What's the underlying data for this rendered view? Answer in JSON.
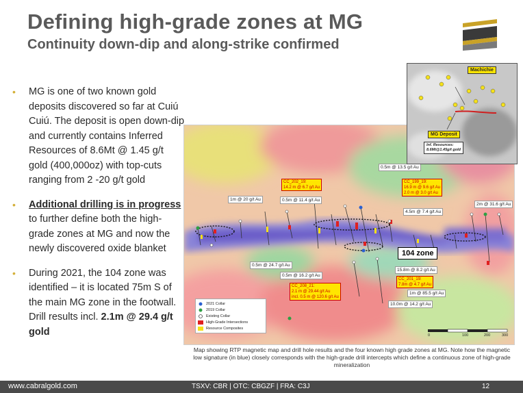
{
  "header": {
    "title": "Defining high-grade zones at MG",
    "subtitle": "Continuity down-dip and along-strike confirmed"
  },
  "bullets": {
    "b1": "MG is one of two known gold deposits discovered so far at Cuiú Cuiú. The deposit is open down-dip and currently contains Inferred Resources of 8.6Mt @ 1.45 g/t gold (400,000oz) with top-cuts ranging from 2 -20 g/t gold",
    "b2_bold": "Additional drilling is in progress",
    "b2_rest": " to further define both the high-grade zones at MG and now the newly discovered oxide blanket",
    "b3_pre": "During 2021, the 104 zone was identified – it is located 75m S of the main MG zone in the footwall. Drill results incl. ",
    "b3_bold": "2.1m @ 29.4 g/t gold"
  },
  "map": {
    "labels": {
      "l1": "0.5m @ 13.5 g/t Au",
      "l2": "1m @ 20 g/t Au",
      "l3": "0.5m @ 11.4 g/t Au",
      "l4": "4.5m @ 7.4 g/t Au",
      "l5": "2m @ 31.6 g/t Au",
      "l6": "0.5m @ 24.7 g/t Au",
      "l7": "0.5m @ 16.2 g/t Au",
      "l8": "15.8m @ 8.2 g/t Au",
      "l9": "1m @ 85.5 g/t Au",
      "l10": "10.0m @ 14.2 g/t Au"
    },
    "highlights": {
      "h1_t": "CC_202_19:",
      "h1_v": "14.2 m @ 6.7 g/t Au",
      "h2_t": "CC_199_19:",
      "h2_v1": "16.9 m @ 9.6 g/t Au",
      "h2_v2": "2.0 m @ 3.0 g/t Au",
      "h3_t": "CC_208_21:",
      "h3_v1": "2.1 m @ 29.44 g/t Au",
      "h3_v2": "incl. 0.5 m @ 120.6 g/t Au",
      "h4_t": "CC_201_19:",
      "h4_v": "7.8m @ 4.7 g/t Au"
    },
    "zone_label": "104 zone",
    "legend": {
      "c2021": "2021 Collar",
      "c2019": "2019 Collar",
      "existing": "Existing Collar",
      "hg": "High-Grade Intersections",
      "rc": "Resource Composites"
    },
    "scale": [
      "0",
      "100",
      "200",
      "300"
    ],
    "scale_unit": "m"
  },
  "inset": {
    "machichie": "Machichie",
    "mg": "MG Deposit",
    "res1": "Inf. Resources:",
    "res2": "8.6Mt@1.45g/t gold"
  },
  "caption": "Map showing RTP magnetic map and drill hole results and the four known high grade zones at MG. Note how the magnetic low signature (in blue) closely corresponds with the high-grade drill intercepts which define a continuous zone of high-grade mineralization",
  "footer": {
    "site": "www.cabralgold.com",
    "tickers": "TSXV: CBR  |  OTC: CBGZF  |  FRA: C3J",
    "page": "12"
  },
  "colors": {
    "accent": "#d4b03a",
    "title": "#5a5a5a",
    "footer": "#4a4a4a"
  }
}
